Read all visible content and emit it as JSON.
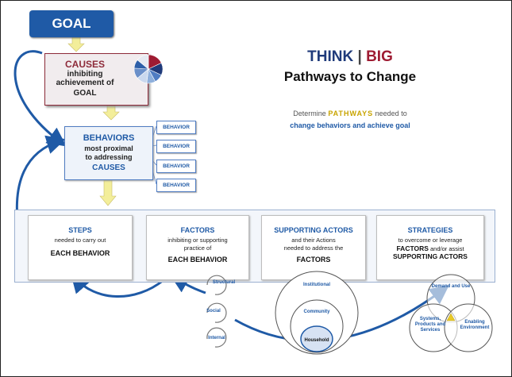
{
  "goal": "GOAL",
  "causes": {
    "title": "CAUSES",
    "line1": "inhibiting",
    "line2": "achievement of",
    "line3": "GOAL"
  },
  "behaviors": {
    "title": "BEHAVIORS",
    "line1": "most proximal",
    "line2": "to addressing",
    "line3": "CAUSES",
    "tags": [
      "BEHAVIOR",
      "BEHAVIOR",
      "BEHAVIOR",
      "BEHAVIOR"
    ]
  },
  "headline": {
    "think": "THINK",
    "sep": " | ",
    "big": "BIG",
    "subtitle": "Pathways to Change"
  },
  "description": {
    "pre": "Determine ",
    "highlight": "PATHWAYS",
    "post": " needed to",
    "line2": "change behaviors and achieve goal"
  },
  "steps": {
    "title": "STEPS",
    "line1": "needed to carry out",
    "bold": "EACH BEHAVIOR"
  },
  "factors": {
    "title": "FACTORS",
    "line1": "inhibiting or supporting",
    "line2": "practice of",
    "bold": "EACH BEHAVIOR"
  },
  "supporting_actors": {
    "title": "SUPPORTING ACTORS",
    "line1": "and their Actions",
    "line2": "needed to address the",
    "bold": "FACTORS"
  },
  "strategies": {
    "title": "STRATEGIES",
    "line1": "to overcome or leverage",
    "bold1": "FACTORS",
    "mid": " and/or assist",
    "bold2": "SUPPORTING ACTORS"
  },
  "factor_cycle": [
    "Structural",
    "Social",
    "Internal"
  ],
  "actor_circles": [
    "Institutional",
    "Community",
    "Household"
  ],
  "strategy_venn": [
    "Demand and Use",
    "Systems, Products and Services",
    "Enabling Environment"
  ],
  "colors": {
    "navy": "#1f3a7a",
    "blue": "#1f5aa6",
    "maroon": "#8e2b3a",
    "gold": "#c8a400",
    "arrow_fill": "#f3ee9a"
  },
  "pie": {
    "slices": [
      {
        "value": 18,
        "color": "#9e1b32"
      },
      {
        "value": 14,
        "color": "#1f3a7a"
      },
      {
        "value": 10,
        "color": "#4f7cc2"
      },
      {
        "value": 10,
        "color": "#8fb0dc"
      },
      {
        "value": 12,
        "color": "#c9d8ee"
      },
      {
        "value": 12,
        "color": "#6a8fc9"
      },
      {
        "value": 10,
        "color": "#2d5fa8"
      },
      {
        "value": 14,
        "color": "#e6eaf2"
      }
    ]
  }
}
